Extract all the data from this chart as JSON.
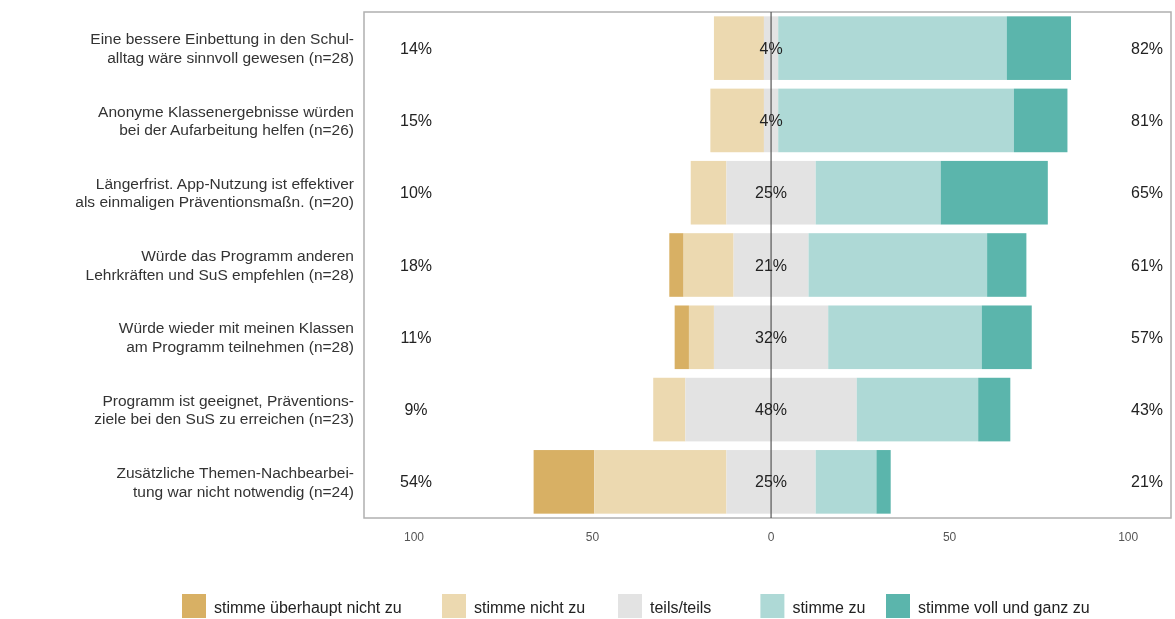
{
  "chart_data": {
    "type": "bar",
    "orientation": "horizontal",
    "categories": [
      "Eine bessere Einbettung in den Schul-\nalltag wäre sinnvoll gewesen (n=28)",
      "Anonyme Klassenergebnisse würden\nbei der Aufarbeitung helfen (n=26)",
      "Längerfrist. App-Nutzung ist effektiver\nals einmaligen Präventionsmaßn. (n=20)",
      "Würde das Programm anderen\nLehrkräften und SuS empfehlen (n=28)",
      "Würde wieder mit meinen Klassen\nam Programm teilnehmen (n=28)",
      "Programm ist geeignet, Präventions-\nziele bei den SuS zu erreichen (n=23)",
      "Zusätzliche Themen-Nachbearbei-\ntung war nicht notwendig (n=24)"
    ],
    "series": [
      {
        "name": "stimme überhaupt nicht zu",
        "color": "#d8b064",
        "base": [
          null,
          null,
          null,
          -28.5,
          -27,
          null,
          -66.5
        ],
        "values": [
          null,
          null,
          null,
          4,
          4,
          null,
          17
        ]
      },
      {
        "name": "stimme nicht zu",
        "color": "#ecd9b0",
        "base": [
          -16,
          -17,
          -22.5,
          -24.5,
          -23,
          -33,
          -49.5
        ],
        "values": [
          14,
          15,
          10,
          14,
          7,
          9,
          37
        ]
      },
      {
        "name": "teils/teils",
        "color": "#e3e3e3",
        "base": [
          -2,
          -2,
          -12.5,
          -10.5,
          -16,
          -24,
          -12.5
        ],
        "values": [
          4,
          4,
          25,
          21,
          32,
          48,
          25
        ],
        "value_labels": [
          "4%",
          "4%",
          "25%",
          "21%",
          "32%",
          "48%",
          "25%"
        ]
      },
      {
        "name": "stimme zu",
        "color": "#aed9d6",
        "base": [
          2,
          2,
          12.5,
          10.5,
          16,
          24,
          12.5
        ],
        "values": [
          64,
          66,
          35,
          50,
          43,
          34,
          17
        ]
      },
      {
        "name": "stimme voll und ganz zu",
        "color": "#5bb5ac",
        "base": [
          66,
          68,
          47.5,
          60.5,
          59,
          58,
          29.5
        ],
        "values": [
          18,
          15,
          30,
          11,
          14,
          9,
          4
        ]
      }
    ],
    "xlim": [
      -114,
      112
    ],
    "xticks": [
      {
        "value": -100,
        "label": "100"
      },
      {
        "value": -50,
        "label": "50"
      },
      0,
      50,
      100
    ],
    "ref_lines": [
      {
        "axis": "x",
        "value": 0,
        "color": "#555555"
      }
    ],
    "annotations": [
      "14%",
      "15%",
      "10%",
      "18%",
      "11%",
      "9%",
      "54%",
      "82%",
      "81%",
      "65%",
      "61%",
      "57%",
      "43%",
      "21%"
    ],
    "grid": false,
    "legend": "bottom"
  }
}
